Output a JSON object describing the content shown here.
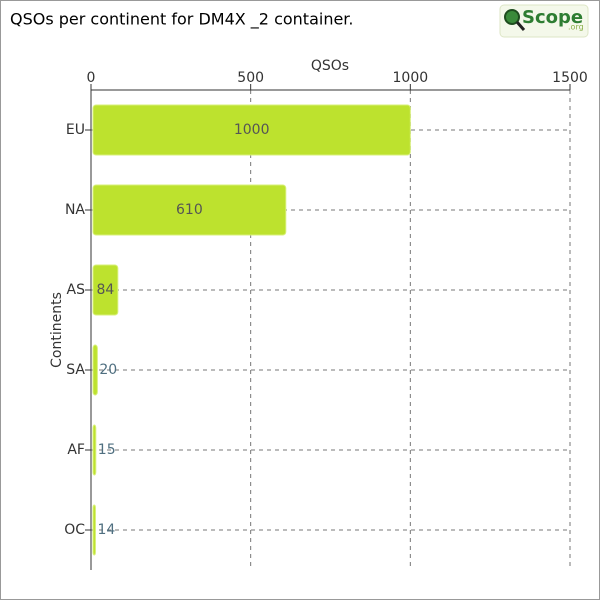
{
  "chart_data": {
    "type": "hbar",
    "title": "QSOs per continent for DM4X _2 container.",
    "x_label": "QSOs",
    "y_label": "Continents",
    "categories": [
      "EU",
      "NA",
      "AS",
      "SA",
      "AF",
      "OC"
    ],
    "values": [
      1000,
      610,
      84,
      20,
      15,
      14
    ],
    "color": "#bde22e",
    "xlim": [
      0,
      1500
    ],
    "xticks": [
      0,
      500,
      1000,
      1500
    ],
    "grid": true
  },
  "logo": {
    "name": "Scope",
    "domain": ".org"
  }
}
